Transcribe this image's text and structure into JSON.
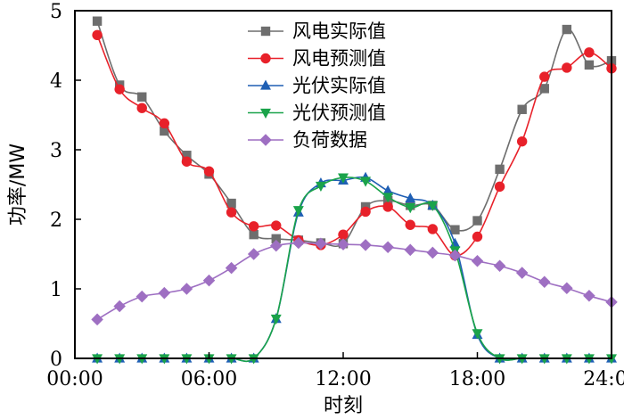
{
  "chart_data": {
    "type": "line",
    "title": "",
    "xlabel": "时刻",
    "ylabel": "功率/MW",
    "xlim": [
      0,
      24
    ],
    "ylim": [
      0,
      5
    ],
    "x_ticks": [
      0,
      6,
      12,
      18,
      24
    ],
    "x_tick_labels": [
      "00:00",
      "06:00",
      "12:00",
      "18:00",
      "24:00"
    ],
    "y_ticks": [
      0,
      1,
      2,
      3,
      4,
      5
    ],
    "y_tick_labels": [
      "0",
      "1",
      "2",
      "3",
      "4",
      "5"
    ],
    "grid": false,
    "legend_position": "top-center",
    "x": [
      1,
      2,
      3,
      4,
      5,
      6,
      7,
      8,
      9,
      10,
      11,
      12,
      13,
      14,
      15,
      16,
      17,
      18,
      19,
      20,
      21,
      22,
      23,
      24
    ],
    "series": [
      {
        "name": "风电实际值",
        "color": "#6e6e6e",
        "marker": "square",
        "values": [
          4.85,
          3.93,
          3.76,
          3.27,
          2.92,
          2.65,
          2.23,
          1.78,
          1.72,
          1.7,
          1.66,
          1.65,
          2.18,
          2.27,
          2.2,
          2.2,
          1.85,
          1.98,
          2.72,
          3.58,
          3.88,
          4.73,
          4.22,
          4.28
        ]
      },
      {
        "name": "风电预测值",
        "color": "#e8212a",
        "marker": "circle",
        "values": [
          4.65,
          3.87,
          3.6,
          3.38,
          2.83,
          2.69,
          2.1,
          1.9,
          1.91,
          1.7,
          1.63,
          1.78,
          2.11,
          2.18,
          1.92,
          1.86,
          1.48,
          1.75,
          2.47,
          3.12,
          4.05,
          4.18,
          4.4,
          4.17
        ]
      },
      {
        "name": "光伏实际值",
        "color": "#1f5fb4",
        "marker": "triangle-up",
        "values": [
          0,
          0,
          0,
          0,
          0,
          0,
          0,
          0,
          0.57,
          2.1,
          2.52,
          2.56,
          2.6,
          2.41,
          2.3,
          2.2,
          1.65,
          0.34,
          0,
          0,
          0,
          0,
          0,
          0
        ]
      },
      {
        "name": "光伏预测值",
        "color": "#1aa34a",
        "marker": "triangle-down",
        "values": [
          0,
          0,
          0,
          0,
          0,
          0,
          0,
          0,
          0.57,
          2.13,
          2.48,
          2.6,
          2.55,
          2.32,
          2.17,
          2.2,
          1.55,
          0.36,
          0,
          0,
          0,
          0,
          0,
          0
        ]
      },
      {
        "name": "负荷数据",
        "color": "#9e6fc2",
        "marker": "diamond",
        "values": [
          0.56,
          0.75,
          0.89,
          0.94,
          1.0,
          1.12,
          1.3,
          1.5,
          1.62,
          1.66,
          1.65,
          1.64,
          1.63,
          1.6,
          1.56,
          1.52,
          1.48,
          1.4,
          1.33,
          1.23,
          1.1,
          1.01,
          0.9,
          0.81
        ]
      }
    ]
  }
}
